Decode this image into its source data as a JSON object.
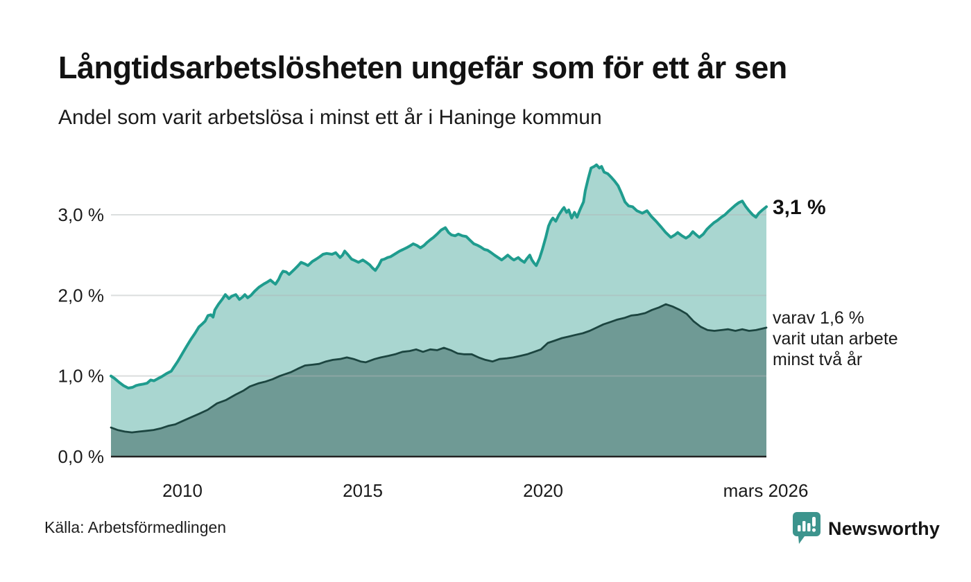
{
  "header": {
    "title": "Långtidsarbetslösheten ungefär som för ett år sen",
    "subtitle": "Andel som varit arbetslösa i minst ett år i Haninge kommun"
  },
  "footer": {
    "source": "Källa: Arbetsförmedlingen",
    "brand": "Newsworthy"
  },
  "colors": {
    "line_total": "#1f9c8e",
    "fill_total": "#a9d6d0",
    "line_two_years": "#1c4540",
    "fill_two_years": "#6f9a95",
    "gridline": "#b0b5b5",
    "axis_line": "#222222",
    "text": "#1a1a1a",
    "logo_teal": "#3c948d",
    "logo_text_teal": "#2e7f7a"
  },
  "chart_data": {
    "type": "area",
    "title": "Långtidsarbetslösheten ungefär som för ett år sen",
    "subtitle": "Andel som varit arbetslösa i minst ett år i Haninge kommun",
    "x_unit": "year (monthly readings, 2008 – mars 2026)",
    "ylim": [
      0,
      3.77
    ],
    "grid": true,
    "yticks": [
      {
        "value": 0,
        "label": "0,0 %"
      },
      {
        "value": 1,
        "label": "1,0 %"
      },
      {
        "value": 2,
        "label": "2,0 %"
      },
      {
        "value": 3,
        "label": "3,0 %"
      }
    ],
    "xticks": [
      {
        "t": 2010,
        "label": "2010"
      },
      {
        "t": 2015,
        "label": "2015"
      },
      {
        "t": 2020,
        "label": "2020"
      },
      {
        "t": 2026.17,
        "label": "mars 2026"
      }
    ],
    "end_labels": {
      "total": "3,1 %",
      "two_years_line1": "varav 1,6 %",
      "two_years_line2": "varit utan arbete",
      "two_years_line3": "minst två år"
    },
    "series": [
      {
        "name": "Andel arbetslösa minst ett år",
        "end_value": 3.1,
        "points": [
          [
            2008.02,
            1.0
          ],
          [
            2008.12,
            0.97
          ],
          [
            2008.25,
            0.92
          ],
          [
            2008.37,
            0.88
          ],
          [
            2008.5,
            0.85
          ],
          [
            2008.62,
            0.86
          ],
          [
            2008.71,
            0.88
          ],
          [
            2008.79,
            0.89
          ],
          [
            2008.92,
            0.9
          ],
          [
            2009.02,
            0.91
          ],
          [
            2009.12,
            0.95
          ],
          [
            2009.21,
            0.94
          ],
          [
            2009.33,
            0.97
          ],
          [
            2009.42,
            0.99
          ],
          [
            2009.56,
            1.03
          ],
          [
            2009.69,
            1.06
          ],
          [
            2009.75,
            1.1
          ],
          [
            2009.87,
            1.18
          ],
          [
            2010.0,
            1.28
          ],
          [
            2010.12,
            1.37
          ],
          [
            2010.23,
            1.45
          ],
          [
            2010.35,
            1.53
          ],
          [
            2010.46,
            1.61
          ],
          [
            2010.56,
            1.65
          ],
          [
            2010.63,
            1.68
          ],
          [
            2010.71,
            1.75
          ],
          [
            2010.79,
            1.76
          ],
          [
            2010.85,
            1.73
          ],
          [
            2010.9,
            1.82
          ],
          [
            2011.0,
            1.89
          ],
          [
            2011.1,
            1.95
          ],
          [
            2011.19,
            2.01
          ],
          [
            2011.29,
            1.96
          ],
          [
            2011.37,
            1.99
          ],
          [
            2011.48,
            2.01
          ],
          [
            2011.58,
            1.95
          ],
          [
            2011.67,
            1.98
          ],
          [
            2011.73,
            2.01
          ],
          [
            2011.81,
            1.97
          ],
          [
            2011.9,
            2.0
          ],
          [
            2012.0,
            2.05
          ],
          [
            2012.12,
            2.1
          ],
          [
            2012.25,
            2.14
          ],
          [
            2012.37,
            2.17
          ],
          [
            2012.44,
            2.19
          ],
          [
            2012.52,
            2.16
          ],
          [
            2012.58,
            2.14
          ],
          [
            2012.67,
            2.2
          ],
          [
            2012.73,
            2.26
          ],
          [
            2012.79,
            2.3
          ],
          [
            2012.88,
            2.29
          ],
          [
            2012.96,
            2.26
          ],
          [
            2013.1,
            2.32
          ],
          [
            2013.21,
            2.37
          ],
          [
            2013.29,
            2.41
          ],
          [
            2013.4,
            2.39
          ],
          [
            2013.48,
            2.37
          ],
          [
            2013.6,
            2.42
          ],
          [
            2013.71,
            2.45
          ],
          [
            2013.81,
            2.48
          ],
          [
            2013.9,
            2.51
          ],
          [
            2014.0,
            2.52
          ],
          [
            2014.15,
            2.51
          ],
          [
            2014.25,
            2.53
          ],
          [
            2014.37,
            2.47
          ],
          [
            2014.44,
            2.5
          ],
          [
            2014.5,
            2.55
          ],
          [
            2014.6,
            2.5
          ],
          [
            2014.69,
            2.45
          ],
          [
            2014.79,
            2.43
          ],
          [
            2014.88,
            2.41
          ],
          [
            2015.0,
            2.44
          ],
          [
            2015.1,
            2.41
          ],
          [
            2015.19,
            2.38
          ],
          [
            2015.27,
            2.34
          ],
          [
            2015.35,
            2.31
          ],
          [
            2015.44,
            2.37
          ],
          [
            2015.52,
            2.44
          ],
          [
            2015.6,
            2.45
          ],
          [
            2015.69,
            2.47
          ],
          [
            2015.77,
            2.48
          ],
          [
            2015.88,
            2.51
          ],
          [
            2016.02,
            2.55
          ],
          [
            2016.12,
            2.57
          ],
          [
            2016.21,
            2.59
          ],
          [
            2016.33,
            2.62
          ],
          [
            2016.4,
            2.64
          ],
          [
            2016.5,
            2.62
          ],
          [
            2016.6,
            2.59
          ],
          [
            2016.7,
            2.62
          ],
          [
            2016.79,
            2.66
          ],
          [
            2016.87,
            2.69
          ],
          [
            2016.96,
            2.72
          ],
          [
            2017.06,
            2.76
          ],
          [
            2017.17,
            2.81
          ],
          [
            2017.29,
            2.84
          ],
          [
            2017.38,
            2.78
          ],
          [
            2017.46,
            2.75
          ],
          [
            2017.56,
            2.74
          ],
          [
            2017.65,
            2.76
          ],
          [
            2017.76,
            2.74
          ],
          [
            2017.87,
            2.73
          ],
          [
            2017.96,
            2.69
          ],
          [
            2018.08,
            2.64
          ],
          [
            2018.19,
            2.62
          ],
          [
            2018.27,
            2.6
          ],
          [
            2018.37,
            2.57
          ],
          [
            2018.46,
            2.56
          ],
          [
            2018.56,
            2.53
          ],
          [
            2018.65,
            2.5
          ],
          [
            2018.75,
            2.47
          ],
          [
            2018.85,
            2.44
          ],
          [
            2018.94,
            2.47
          ],
          [
            2019.02,
            2.5
          ],
          [
            2019.12,
            2.46
          ],
          [
            2019.19,
            2.44
          ],
          [
            2019.31,
            2.47
          ],
          [
            2019.38,
            2.44
          ],
          [
            2019.48,
            2.41
          ],
          [
            2019.54,
            2.45
          ],
          [
            2019.63,
            2.5
          ],
          [
            2019.69,
            2.44
          ],
          [
            2019.75,
            2.4
          ],
          [
            2019.81,
            2.37
          ],
          [
            2019.9,
            2.46
          ],
          [
            2019.98,
            2.57
          ],
          [
            2020.08,
            2.73
          ],
          [
            2020.15,
            2.86
          ],
          [
            2020.21,
            2.92
          ],
          [
            2020.27,
            2.96
          ],
          [
            2020.35,
            2.92
          ],
          [
            2020.44,
            3.0
          ],
          [
            2020.54,
            3.07
          ],
          [
            2020.58,
            3.09
          ],
          [
            2020.65,
            3.03
          ],
          [
            2020.71,
            3.06
          ],
          [
            2020.79,
            2.96
          ],
          [
            2020.87,
            3.03
          ],
          [
            2020.94,
            2.97
          ],
          [
            2021.02,
            3.06
          ],
          [
            2021.12,
            3.16
          ],
          [
            2021.17,
            3.3
          ],
          [
            2021.25,
            3.45
          ],
          [
            2021.33,
            3.58
          ],
          [
            2021.42,
            3.6
          ],
          [
            2021.48,
            3.62
          ],
          [
            2021.56,
            3.58
          ],
          [
            2021.62,
            3.6
          ],
          [
            2021.69,
            3.53
          ],
          [
            2021.79,
            3.51
          ],
          [
            2021.88,
            3.47
          ],
          [
            2021.98,
            3.42
          ],
          [
            2022.08,
            3.36
          ],
          [
            2022.17,
            3.27
          ],
          [
            2022.27,
            3.16
          ],
          [
            2022.37,
            3.11
          ],
          [
            2022.48,
            3.1
          ],
          [
            2022.6,
            3.05
          ],
          [
            2022.75,
            3.02
          ],
          [
            2022.88,
            3.05
          ],
          [
            2023.0,
            2.98
          ],
          [
            2023.13,
            2.92
          ],
          [
            2023.27,
            2.85
          ],
          [
            2023.4,
            2.78
          ],
          [
            2023.54,
            2.72
          ],
          [
            2023.65,
            2.75
          ],
          [
            2023.73,
            2.78
          ],
          [
            2023.85,
            2.74
          ],
          [
            2023.96,
            2.71
          ],
          [
            2024.06,
            2.74
          ],
          [
            2024.15,
            2.79
          ],
          [
            2024.25,
            2.75
          ],
          [
            2024.33,
            2.72
          ],
          [
            2024.44,
            2.76
          ],
          [
            2024.54,
            2.82
          ],
          [
            2024.63,
            2.86
          ],
          [
            2024.73,
            2.9
          ],
          [
            2024.83,
            2.93
          ],
          [
            2024.94,
            2.97
          ],
          [
            2025.04,
            3.0
          ],
          [
            2025.13,
            3.04
          ],
          [
            2025.23,
            3.08
          ],
          [
            2025.33,
            3.12
          ],
          [
            2025.42,
            3.15
          ],
          [
            2025.52,
            3.17
          ],
          [
            2025.62,
            3.1
          ],
          [
            2025.71,
            3.05
          ],
          [
            2025.81,
            3.0
          ],
          [
            2025.9,
            2.97
          ],
          [
            2025.98,
            3.02
          ],
          [
            2026.08,
            3.06
          ],
          [
            2026.19,
            3.1
          ]
        ]
      },
      {
        "name": "varav utan arbete minst två år",
        "end_value": 1.6,
        "points": [
          [
            2008.02,
            0.36
          ],
          [
            2008.2,
            0.33
          ],
          [
            2008.4,
            0.31
          ],
          [
            2008.6,
            0.3
          ],
          [
            2008.8,
            0.31
          ],
          [
            2009.0,
            0.32
          ],
          [
            2009.2,
            0.33
          ],
          [
            2009.4,
            0.35
          ],
          [
            2009.6,
            0.38
          ],
          [
            2009.8,
            0.4
          ],
          [
            2010.0,
            0.44
          ],
          [
            2010.2,
            0.48
          ],
          [
            2010.46,
            0.53
          ],
          [
            2010.7,
            0.58
          ],
          [
            2010.96,
            0.66
          ],
          [
            2011.2,
            0.7
          ],
          [
            2011.48,
            0.77
          ],
          [
            2011.7,
            0.82
          ],
          [
            2011.87,
            0.87
          ],
          [
            2012.12,
            0.91
          ],
          [
            2012.3,
            0.93
          ],
          [
            2012.5,
            0.96
          ],
          [
            2012.7,
            1.0
          ],
          [
            2013.02,
            1.05
          ],
          [
            2013.2,
            1.09
          ],
          [
            2013.4,
            1.13
          ],
          [
            2013.6,
            1.14
          ],
          [
            2013.79,
            1.15
          ],
          [
            2013.98,
            1.18
          ],
          [
            2014.17,
            1.2
          ],
          [
            2014.37,
            1.21
          ],
          [
            2014.56,
            1.23
          ],
          [
            2014.75,
            1.21
          ],
          [
            2014.94,
            1.18
          ],
          [
            2015.08,
            1.17
          ],
          [
            2015.33,
            1.21
          ],
          [
            2015.5,
            1.23
          ],
          [
            2015.71,
            1.25
          ],
          [
            2015.9,
            1.27
          ],
          [
            2016.1,
            1.3
          ],
          [
            2016.3,
            1.31
          ],
          [
            2016.48,
            1.33
          ],
          [
            2016.67,
            1.3
          ],
          [
            2016.87,
            1.33
          ],
          [
            2017.06,
            1.32
          ],
          [
            2017.25,
            1.35
          ],
          [
            2017.44,
            1.32
          ],
          [
            2017.63,
            1.28
          ],
          [
            2017.8,
            1.27
          ],
          [
            2018.02,
            1.27
          ],
          [
            2018.21,
            1.23
          ],
          [
            2018.4,
            1.2
          ],
          [
            2018.6,
            1.18
          ],
          [
            2018.79,
            1.21
          ],
          [
            2019.0,
            1.22
          ],
          [
            2019.17,
            1.23
          ],
          [
            2019.37,
            1.25
          ],
          [
            2019.56,
            1.27
          ],
          [
            2019.75,
            1.3
          ],
          [
            2019.94,
            1.33
          ],
          [
            2020.13,
            1.41
          ],
          [
            2020.33,
            1.44
          ],
          [
            2020.52,
            1.47
          ],
          [
            2020.71,
            1.49
          ],
          [
            2020.9,
            1.51
          ],
          [
            2021.1,
            1.53
          ],
          [
            2021.29,
            1.56
          ],
          [
            2021.48,
            1.6
          ],
          [
            2021.67,
            1.64
          ],
          [
            2021.87,
            1.67
          ],
          [
            2022.06,
            1.7
          ],
          [
            2022.25,
            1.72
          ],
          [
            2022.44,
            1.75
          ],
          [
            2022.63,
            1.76
          ],
          [
            2022.83,
            1.78
          ],
          [
            2023.02,
            1.82
          ],
          [
            2023.21,
            1.85
          ],
          [
            2023.4,
            1.89
          ],
          [
            2023.6,
            1.86
          ],
          [
            2023.79,
            1.82
          ],
          [
            2023.98,
            1.77
          ],
          [
            2024.17,
            1.68
          ],
          [
            2024.37,
            1.61
          ],
          [
            2024.56,
            1.57
          ],
          [
            2024.75,
            1.56
          ],
          [
            2024.94,
            1.57
          ],
          [
            2025.13,
            1.58
          ],
          [
            2025.33,
            1.56
          ],
          [
            2025.52,
            1.58
          ],
          [
            2025.71,
            1.56
          ],
          [
            2025.9,
            1.57
          ],
          [
            2026.1,
            1.59
          ],
          [
            2026.19,
            1.6
          ]
        ]
      }
    ]
  }
}
